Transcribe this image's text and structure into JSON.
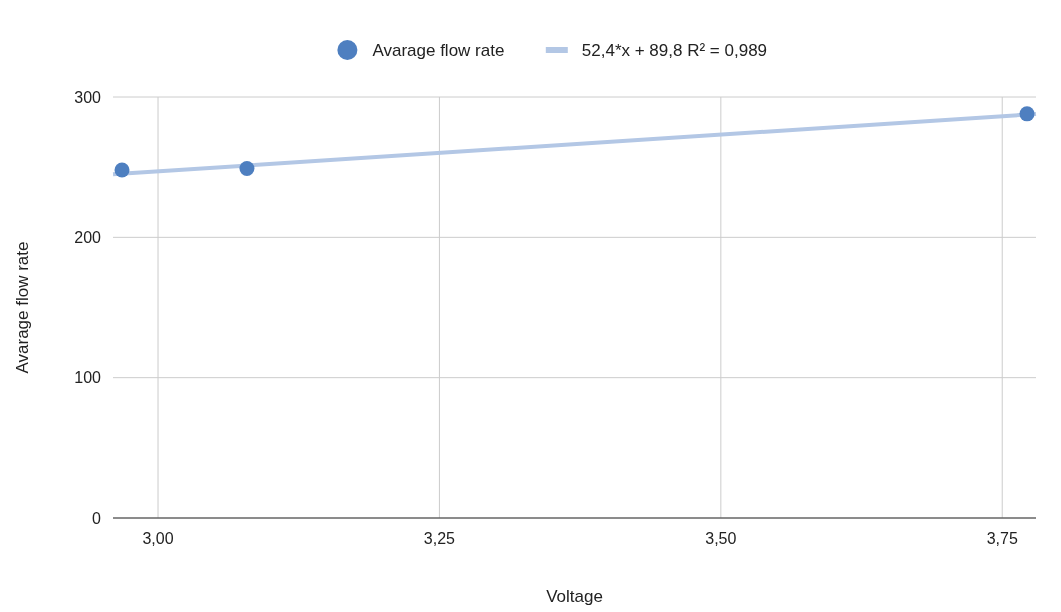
{
  "chart_data": {
    "type": "scatter",
    "xlabel": "Voltage",
    "ylabel": "Avarage flow rate",
    "xlim": [
      2.96,
      3.78
    ],
    "ylim": [
      0,
      300
    ],
    "xticks": [
      {
        "value": 3,
        "label": "3,00"
      },
      {
        "value": 3.25,
        "label": "3,25"
      },
      {
        "value": 3.5,
        "label": "3,50"
      },
      {
        "value": 3.75,
        "label": "3,75"
      }
    ],
    "yticks": [
      0,
      100,
      200,
      300
    ],
    "grid": true,
    "legend": "top",
    "series": [
      {
        "name": "Avarage flow rate",
        "color": "#4e7fc0",
        "marker": "circle",
        "x": [
          2.968,
          3.079,
          3.772
        ],
        "values": [
          248,
          249,
          288
        ]
      },
      {
        "name": "52,4*x + 89,8 R² = 0,989",
        "type": "line",
        "color": "#b3c7e5",
        "x": [
          2.96,
          3.78
        ],
        "values": [
          244.9,
          287.9
        ]
      }
    ]
  }
}
